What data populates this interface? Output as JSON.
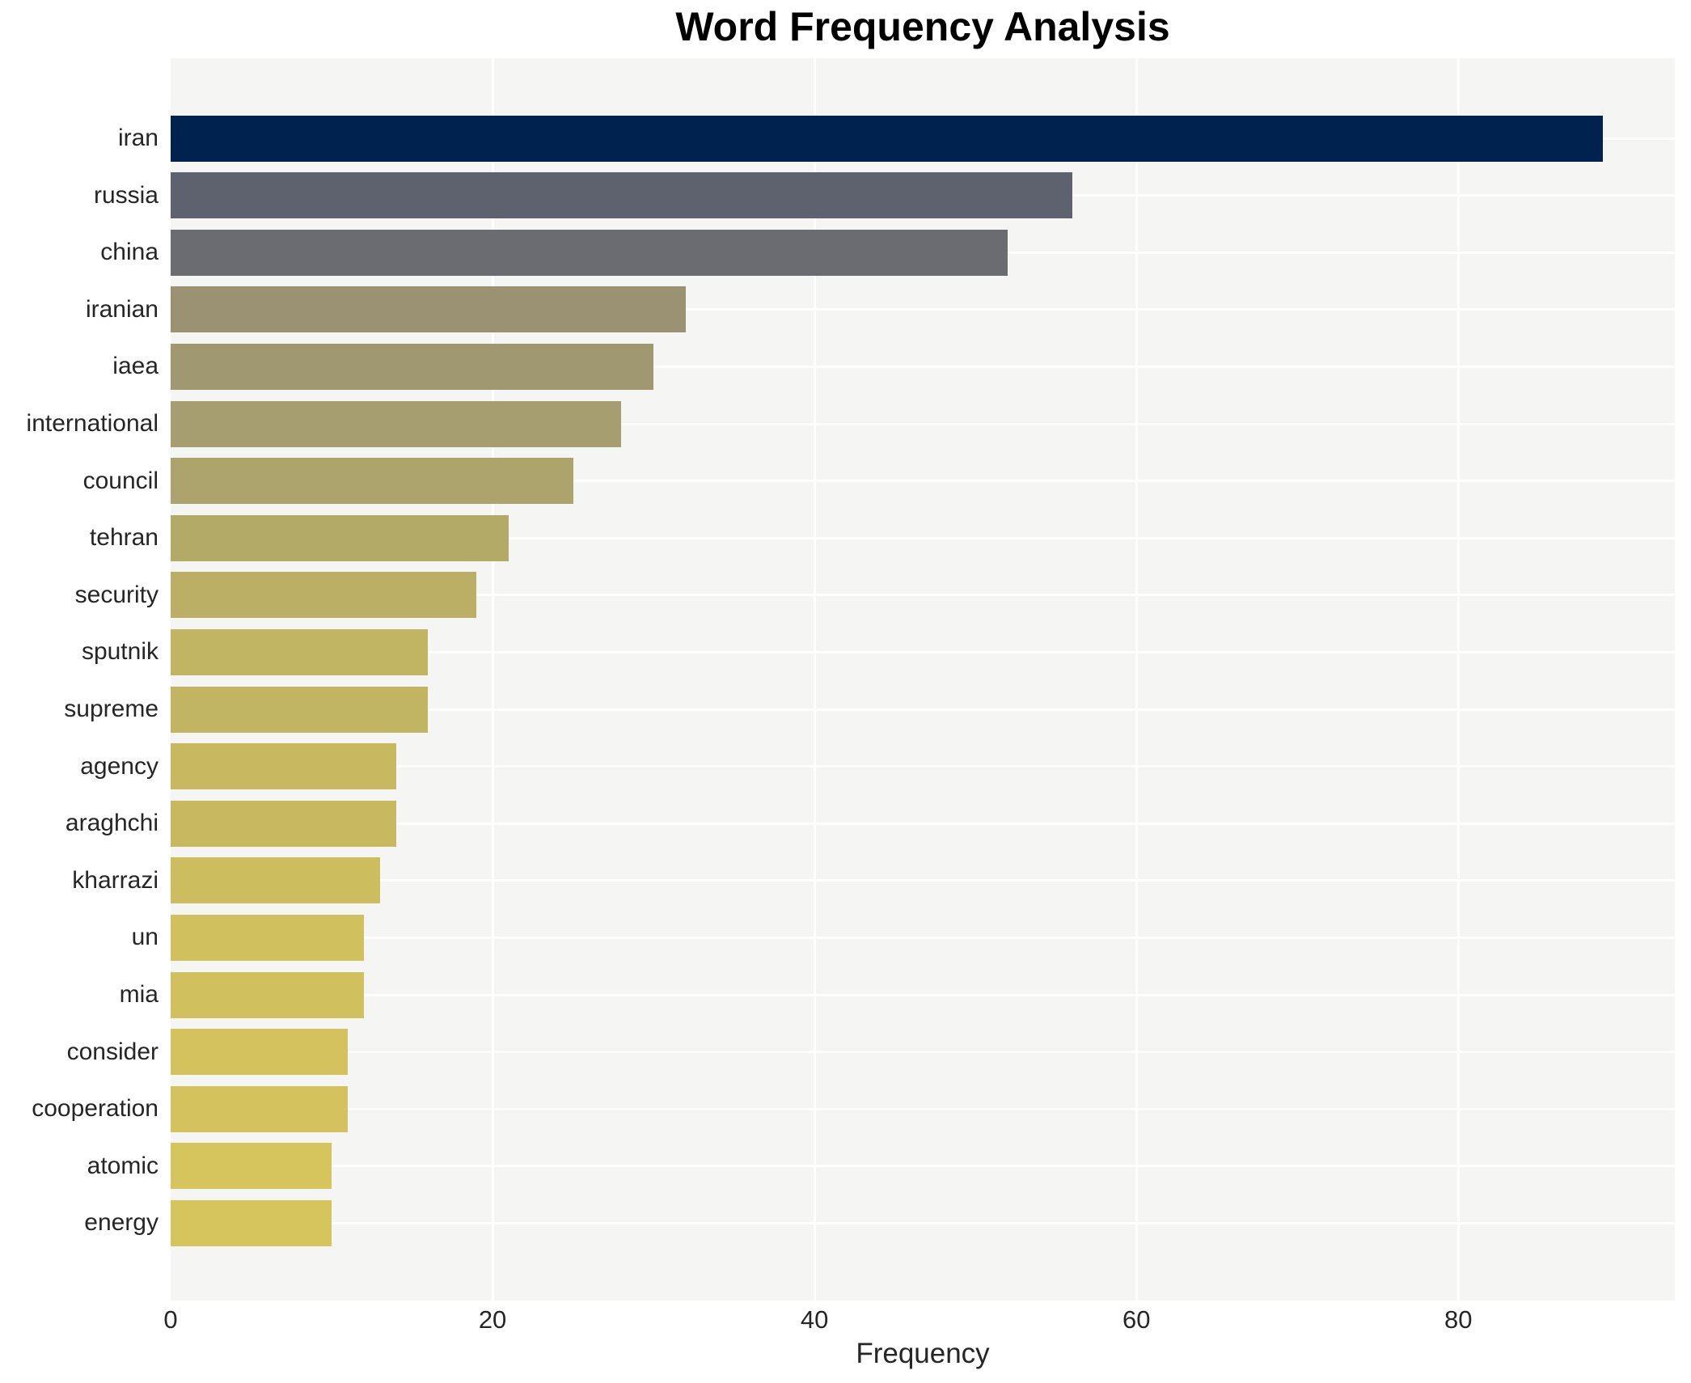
{
  "chart_data": {
    "type": "bar",
    "orientation": "horizontal",
    "title": "Word Frequency Analysis",
    "xlabel": "Frequency",
    "ylabel": "",
    "categories": [
      "iran",
      "russia",
      "china",
      "iranian",
      "iaea",
      "international",
      "council",
      "tehran",
      "security",
      "sputnik",
      "supreme",
      "agency",
      "araghchi",
      "kharrazi",
      "un",
      "mia",
      "consider",
      "cooperation",
      "atomic",
      "energy"
    ],
    "values": [
      89,
      56,
      52,
      32,
      30,
      28,
      25,
      21,
      19,
      16,
      16,
      14,
      14,
      13,
      12,
      12,
      11,
      11,
      10,
      10
    ],
    "bar_colors": [
      "#00224e",
      "#5e626e",
      "#6b6c72",
      "#9a9273",
      "#a09870",
      "#a69e71",
      "#ada46d",
      "#b4aa68",
      "#bbaf66",
      "#c1b563",
      "#c1b563",
      "#c8b961",
      "#c8b961",
      "#ccbd5f",
      "#d0c05e",
      "#d0c05e",
      "#d3c25d",
      "#d3c25d",
      "#d6c55c",
      "#d6c55c"
    ],
    "x_ticks": [
      0,
      20,
      40,
      60,
      80
    ],
    "xlim": [
      0,
      93.45
    ],
    "grid": true,
    "legend": "none",
    "plot_background": "#f5f5f4",
    "grid_color": "#ffffff",
    "text_color": "#262626",
    "title_color": "#000000"
  }
}
